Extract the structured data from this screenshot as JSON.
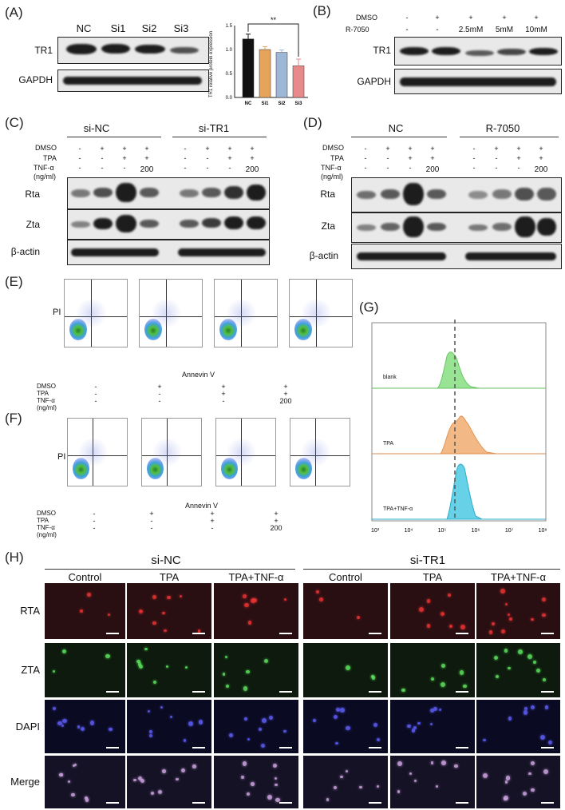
{
  "panels": {
    "A": "(A)",
    "B": "(B)",
    "C": "(C)",
    "D": "(D)",
    "E": "(E)",
    "F": "(F)",
    "G": "(G)",
    "H": "(H)"
  },
  "panelA": {
    "lanes": [
      "NC",
      "Si1",
      "Si2",
      "Si3"
    ],
    "rows": [
      "TR1",
      "GAPDH"
    ],
    "chart_data": {
      "type": "bar",
      "categories": [
        "NC",
        "Si1",
        "Si2",
        "Si3"
      ],
      "values": [
        1.22,
        1.0,
        0.94,
        0.66
      ],
      "errors": [
        0.1,
        0.06,
        0.05,
        0.14
      ],
      "colors": [
        "#111111",
        "#e6a35a",
        "#9fb7d6",
        "#e88a8a"
      ],
      "ylabel": "TR1 relative protein expression",
      "ylim": [
        0,
        1.5
      ],
      "yticks": [
        "0.0",
        "0.5",
        "1.0",
        "1.5"
      ],
      "significance": "**"
    }
  },
  "panelB": {
    "treat_labels": [
      "DMSO",
      "R-7050"
    ],
    "dmso": [
      "-",
      "+",
      "+",
      "+",
      "+"
    ],
    "r7050": [
      "-",
      "-",
      "2.5mM",
      "5mM",
      "10mM"
    ],
    "rows": [
      "TR1",
      "GAPDH"
    ]
  },
  "panelC": {
    "groups": [
      "si-NC",
      "si-TR1"
    ],
    "treat_labels": [
      "DMSO",
      "TPA",
      "TNF-α",
      "(ng/ml)"
    ],
    "dmso": [
      "-",
      "+",
      "+",
      "+",
      "-",
      "+",
      "+",
      "+"
    ],
    "tpa": [
      "-",
      "-",
      "+",
      "+",
      "-",
      "-",
      "+",
      "+"
    ],
    "tnf": [
      "-",
      "-",
      "-",
      "200",
      "-",
      "-",
      "-",
      "200"
    ],
    "rows": [
      "Rta",
      "Zta",
      "β-actin"
    ]
  },
  "panelD": {
    "groups": [
      "NC",
      "R-7050"
    ],
    "treat_labels": [
      "DMSO",
      "TPA",
      "TNF-α",
      "(ng/ml)"
    ],
    "dmso": [
      "-",
      "+",
      "+",
      "+",
      "-",
      "+",
      "+",
      "+"
    ],
    "tpa": [
      "-",
      "-",
      "+",
      "+",
      "-",
      "-",
      "+",
      "+"
    ],
    "tnf": [
      "-",
      "-",
      "-",
      "200",
      "-",
      "-",
      "-",
      "200"
    ],
    "rows": [
      "Rta",
      "Zta",
      "β-actin"
    ]
  },
  "flow": {
    "ylabel": "PI",
    "xlabel": "Annevin V",
    "treat_labels": [
      "DMSO",
      "TPA",
      "TNF-α",
      "(ng/ml)"
    ],
    "dmso": [
      "-",
      "+",
      "+",
      "+"
    ],
    "tpa": [
      "-",
      "-",
      "+",
      "+"
    ],
    "tnf": [
      "-",
      "-",
      "-",
      "200"
    ]
  },
  "panelG": {
    "curves": [
      "blank",
      "TPA",
      "TPA+TNF-α"
    ],
    "colors": [
      "#8fe08a",
      "#f1b27a",
      "#5fd0e6"
    ],
    "xticks": [
      "10³",
      "10⁴",
      "10⁵",
      "10⁶",
      "10⁷",
      "10⁸"
    ]
  },
  "panelH": {
    "groups": [
      "si-NC",
      "si-TR1"
    ],
    "columns": [
      "Control",
      "TPA",
      "TPA+TNF-α",
      "Control",
      "TPA",
      "TPA+TNF-α"
    ],
    "rows": [
      "RTA",
      "ZTA",
      "DAPI",
      "Merge"
    ]
  }
}
